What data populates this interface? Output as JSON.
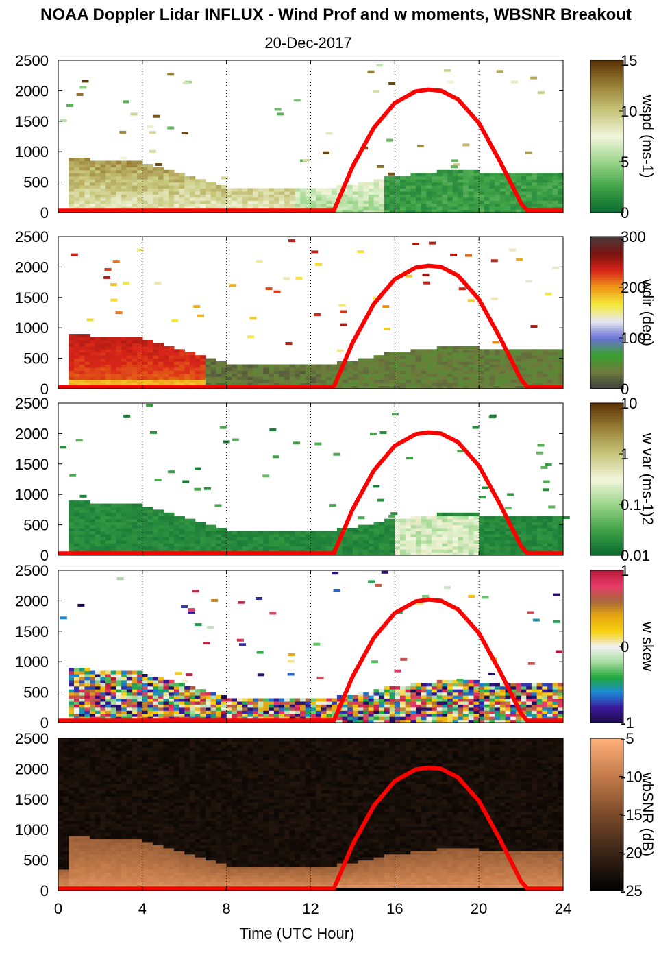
{
  "header": {
    "title": "NOAA Doppler Lidar INFLUX - Wind Prof and w moments, WBSNR Breakout",
    "date": "20-Dec-2017"
  },
  "chart_data": [
    {
      "type": "heatmap",
      "panel": "wspd",
      "colorbar_label": "wspd (ms-1)",
      "colorbar_ticks": [
        "0",
        "5",
        "10",
        "15"
      ],
      "colormap": [
        "#0b6b32",
        "#3fa246",
        "#9ad48a",
        "#f1f6dc",
        "#c8c77c",
        "#9a8238",
        "#5c3306"
      ],
      "ylim": [
        0,
        2500
      ],
      "xlim": [
        0,
        24
      ],
      "yticks": [
        "0",
        "500",
        "1000",
        "1500",
        "2000",
        "2500"
      ]
    },
    {
      "type": "heatmap",
      "panel": "wdir",
      "colorbar_label": "wdir (deg)",
      "colorbar_ticks": [
        "0",
        "100",
        "200",
        "300"
      ],
      "colormap": [
        "#3c3c3c",
        "#6e7b3c",
        "#3aa030",
        "#6a72d6",
        "#e8e8f0",
        "#f3e838",
        "#f09818",
        "#d82418",
        "#7a1410",
        "#4a3a3a"
      ],
      "ylim": [
        0,
        2500
      ],
      "xlim": [
        0,
        24
      ],
      "yticks": [
        "0",
        "500",
        "1000",
        "1500",
        "2000",
        "2500"
      ]
    },
    {
      "type": "heatmap",
      "panel": "w var",
      "colorbar_label": "w var (ms-1)2",
      "colorbar_ticks": [
        "0.01",
        "0.1",
        "1",
        "10"
      ],
      "colormap": [
        "#0b6b32",
        "#3fa246",
        "#9ad48a",
        "#f1f6dc",
        "#c8c77c",
        "#9a8238",
        "#5c3306"
      ],
      "ylim": [
        0,
        2500
      ],
      "xlim": [
        0,
        24
      ],
      "yticks": [
        "0",
        "500",
        "1000",
        "1500",
        "2000",
        "2500"
      ]
    },
    {
      "type": "heatmap",
      "panel": "w skew",
      "colorbar_label": "w skew",
      "colorbar_ticks": [
        "-1",
        "0",
        "1"
      ],
      "colormap": [
        "#1c0b4a",
        "#3c1a9c",
        "#1a8ad8",
        "#22a838",
        "#a8dca0",
        "#f2f2f2",
        "#f7d010",
        "#e8a810",
        "#a8683c",
        "#e83a6a",
        "#b81c3a"
      ],
      "ylim": [
        0,
        2500
      ],
      "xlim": [
        0,
        24
      ],
      "yticks": [
        "0",
        "500",
        "1000",
        "1500",
        "2000",
        "2500"
      ]
    },
    {
      "type": "heatmap",
      "panel": "wbSNR",
      "colorbar_label": "wbSNR (dB)",
      "colorbar_ticks": [
        "-25",
        "-20",
        "-15",
        "-10",
        "-5"
      ],
      "colormap": [
        "#000000",
        "#3a2416",
        "#7a4a2a",
        "#c27a4a",
        "#ffb07a"
      ],
      "ylim": [
        0,
        2500
      ],
      "xlim": [
        0,
        24
      ],
      "yticks": [
        "0",
        "500",
        "1000",
        "1500",
        "2000",
        "2500"
      ]
    }
  ],
  "shared_x": {
    "xlabel": "Time (UTC Hour)",
    "xticks": [
      "0",
      "4",
      "8",
      "12",
      "16",
      "20",
      "24"
    ],
    "grid_lines": [
      4,
      8,
      12,
      16,
      20,
      24
    ]
  },
  "sun_curve": {
    "color": "#ff0000",
    "points": [
      [
        0,
        30
      ],
      [
        13.1,
        30
      ],
      [
        14,
        760
      ],
      [
        15,
        1390
      ],
      [
        16,
        1800
      ],
      [
        17,
        1990
      ],
      [
        17.6,
        2020
      ],
      [
        18.2,
        2000
      ],
      [
        19,
        1860
      ],
      [
        20,
        1470
      ],
      [
        21,
        840
      ],
      [
        22,
        150
      ],
      [
        22.3,
        30
      ],
      [
        24,
        30
      ]
    ]
  }
}
